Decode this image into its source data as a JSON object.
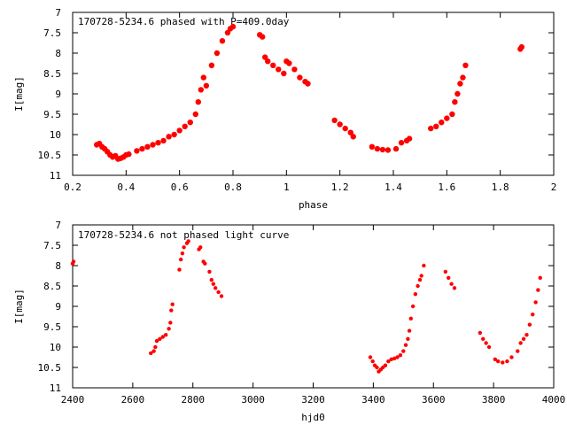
{
  "chart_data": [
    {
      "type": "scatter",
      "title": "170728-5234.6 phased with P=409.0day",
      "xlabel": "phase",
      "ylabel": "I[mag]",
      "xlim": [
        0.2,
        2.0
      ],
      "ylim": [
        11,
        7
      ],
      "y_inverted": true,
      "grid": false,
      "xticks": [
        "0.2",
        "0.4",
        "0.6",
        "0.8",
        "1",
        "1.2",
        "1.4",
        "1.6",
        "1.8",
        "2"
      ],
      "yticks": [
        "7",
        "7.5",
        "8",
        "8.5",
        "9",
        "9.5",
        "10",
        "10.5",
        "11"
      ],
      "marker_color": "#ff0000",
      "series": [
        {
          "points": [
            [
              0.29,
              10.25
            ],
            [
              0.3,
              10.22
            ],
            [
              0.31,
              10.3
            ],
            [
              0.32,
              10.35
            ],
            [
              0.33,
              10.42
            ],
            [
              0.34,
              10.5
            ],
            [
              0.35,
              10.55
            ],
            [
              0.36,
              10.52
            ],
            [
              0.37,
              10.6
            ],
            [
              0.38,
              10.58
            ],
            [
              0.39,
              10.55
            ],
            [
              0.4,
              10.5
            ],
            [
              0.41,
              10.48
            ],
            [
              0.44,
              10.4
            ],
            [
              0.46,
              10.35
            ],
            [
              0.48,
              10.3
            ],
            [
              0.5,
              10.25
            ],
            [
              0.52,
              10.2
            ],
            [
              0.54,
              10.15
            ],
            [
              0.56,
              10.05
            ],
            [
              0.58,
              10.0
            ],
            [
              0.6,
              9.9
            ],
            [
              0.62,
              9.8
            ],
            [
              0.64,
              9.7
            ],
            [
              0.66,
              9.5
            ],
            [
              0.67,
              9.2
            ],
            [
              0.68,
              8.9
            ],
            [
              0.69,
              8.6
            ],
            [
              0.7,
              8.8
            ],
            [
              0.72,
              8.3
            ],
            [
              0.74,
              8.0
            ],
            [
              0.76,
              7.7
            ],
            [
              0.78,
              7.5
            ],
            [
              0.79,
              7.4
            ],
            [
              0.8,
              7.35
            ],
            [
              0.9,
              7.55
            ],
            [
              0.91,
              7.6
            ],
            [
              0.92,
              8.1
            ],
            [
              0.93,
              8.2
            ],
            [
              0.95,
              8.3
            ],
            [
              0.97,
              8.4
            ],
            [
              0.99,
              8.5
            ],
            [
              1.0,
              8.2
            ],
            [
              1.01,
              8.25
            ],
            [
              1.03,
              8.4
            ],
            [
              1.05,
              8.6
            ],
            [
              1.07,
              8.7
            ],
            [
              1.08,
              8.75
            ],
            [
              1.18,
              9.65
            ],
            [
              1.2,
              9.75
            ],
            [
              1.22,
              9.85
            ],
            [
              1.24,
              9.95
            ],
            [
              1.25,
              10.05
            ],
            [
              1.32,
              10.3
            ],
            [
              1.34,
              10.35
            ],
            [
              1.36,
              10.37
            ],
            [
              1.38,
              10.38
            ],
            [
              1.41,
              10.35
            ],
            [
              1.43,
              10.2
            ],
            [
              1.45,
              10.15
            ],
            [
              1.46,
              10.1
            ],
            [
              1.54,
              9.85
            ],
            [
              1.56,
              9.8
            ],
            [
              1.58,
              9.7
            ],
            [
              1.6,
              9.6
            ],
            [
              1.62,
              9.5
            ],
            [
              1.63,
              9.2
            ],
            [
              1.64,
              9.0
            ],
            [
              1.65,
              8.75
            ],
            [
              1.66,
              8.6
            ],
            [
              1.67,
              8.3
            ],
            [
              1.875,
              7.9
            ],
            [
              1.88,
              7.85
            ]
          ]
        }
      ]
    },
    {
      "type": "scatter",
      "title": "170728-5234.6 not phased light curve",
      "xlabel": "hjd0",
      "ylabel": "I[mag]",
      "xlim": [
        2400,
        4000
      ],
      "ylim": [
        11,
        7
      ],
      "y_inverted": true,
      "grid": false,
      "xticks": [
        "2400",
        "2600",
        "2800",
        "3000",
        "3200",
        "3400",
        "3600",
        "3800",
        "4000"
      ],
      "yticks": [
        "7",
        "7.5",
        "8",
        "8.5",
        "9",
        "9.5",
        "10",
        "10.5",
        "11"
      ],
      "marker_color": "#ff0000",
      "series": [
        {
          "points": [
            [
              2400,
              7.95
            ],
            [
              2403,
              7.9
            ],
            [
              2660,
              10.15
            ],
            [
              2670,
              10.1
            ],
            [
              2675,
              10.0
            ],
            [
              2680,
              9.85
            ],
            [
              2690,
              9.8
            ],
            [
              2700,
              9.75
            ],
            [
              2710,
              9.7
            ],
            [
              2720,
              9.55
            ],
            [
              2725,
              9.4
            ],
            [
              2728,
              9.1
            ],
            [
              2732,
              8.95
            ],
            [
              2755,
              8.1
            ],
            [
              2760,
              7.85
            ],
            [
              2765,
              7.7
            ],
            [
              2770,
              7.55
            ],
            [
              2780,
              7.45
            ],
            [
              2785,
              7.4
            ],
            [
              2820,
              7.6
            ],
            [
              2825,
              7.55
            ],
            [
              2835,
              7.9
            ],
            [
              2840,
              7.95
            ],
            [
              2855,
              8.15
            ],
            [
              2862,
              8.35
            ],
            [
              2868,
              8.45
            ],
            [
              2875,
              8.55
            ],
            [
              2885,
              8.65
            ],
            [
              2895,
              8.75
            ],
            [
              3390,
              10.25
            ],
            [
              3398,
              10.35
            ],
            [
              3405,
              10.45
            ],
            [
              3412,
              10.5
            ],
            [
              3418,
              10.6
            ],
            [
              3425,
              10.55
            ],
            [
              3432,
              10.5
            ],
            [
              3440,
              10.45
            ],
            [
              3450,
              10.35
            ],
            [
              3460,
              10.3
            ],
            [
              3470,
              10.28
            ],
            [
              3480,
              10.25
            ],
            [
              3490,
              10.2
            ],
            [
              3500,
              10.1
            ],
            [
              3508,
              9.95
            ],
            [
              3515,
              9.8
            ],
            [
              3520,
              9.6
            ],
            [
              3525,
              9.3
            ],
            [
              3532,
              9.0
            ],
            [
              3540,
              8.7
            ],
            [
              3548,
              8.5
            ],
            [
              3555,
              8.35
            ],
            [
              3560,
              8.25
            ],
            [
              3568,
              8.0
            ],
            [
              3640,
              8.15
            ],
            [
              3650,
              8.3
            ],
            [
              3660,
              8.45
            ],
            [
              3670,
              8.55
            ],
            [
              3755,
              9.65
            ],
            [
              3765,
              9.8
            ],
            [
              3775,
              9.9
            ],
            [
              3785,
              10.0
            ],
            [
              3805,
              10.3
            ],
            [
              3815,
              10.35
            ],
            [
              3830,
              10.38
            ],
            [
              3845,
              10.35
            ],
            [
              3860,
              10.25
            ],
            [
              3880,
              10.1
            ],
            [
              3890,
              9.9
            ],
            [
              3900,
              9.8
            ],
            [
              3910,
              9.7
            ],
            [
              3920,
              9.45
            ],
            [
              3930,
              9.2
            ],
            [
              3940,
              8.9
            ],
            [
              3948,
              8.6
            ],
            [
              3955,
              8.3
            ]
          ]
        }
      ]
    }
  ]
}
